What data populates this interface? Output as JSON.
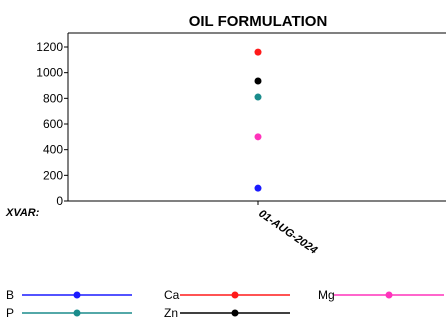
{
  "chart_data": {
    "type": "scatter",
    "title": "OIL FORMULATION",
    "xlabel": "XVAR:",
    "ylabel": "",
    "x": [
      "01-AUG-2024"
    ],
    "ylim": [
      0,
      1200
    ],
    "yticks": [
      0,
      200,
      400,
      600,
      800,
      1000,
      1200
    ],
    "grid": false,
    "legend_position": "bottom",
    "series": [
      {
        "name": "B",
        "color": "#1a1aff",
        "values": [
          100
        ]
      },
      {
        "name": "Ca",
        "color": "#ff1a1a",
        "values": [
          1160
        ]
      },
      {
        "name": "Mg",
        "color": "#ff33bb",
        "values": [
          500
        ]
      },
      {
        "name": "P",
        "color": "#1a8c8c",
        "values": [
          810
        ]
      },
      {
        "name": "Zn",
        "color": "#000000",
        "values": [
          935
        ]
      }
    ]
  }
}
